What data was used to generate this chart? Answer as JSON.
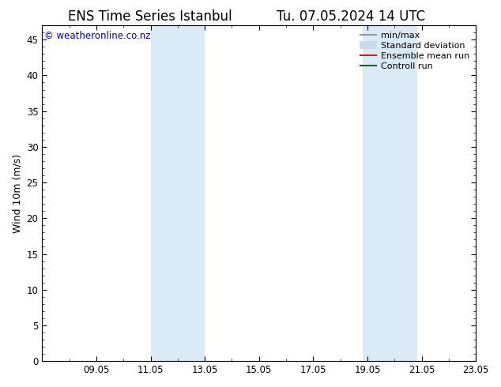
{
  "title_left": "ENS Time Series Istanbul",
  "title_right": "Tu. 07.05.2024 14 UTC",
  "ylabel": "Wind 10m (m/s)",
  "ylim": [
    0,
    47
  ],
  "yticks": [
    0,
    5,
    10,
    15,
    20,
    25,
    30,
    35,
    40,
    45
  ],
  "xlim": [
    0,
    16
  ],
  "xtick_labels": [
    "09.05",
    "11.05",
    "13.05",
    "15.05",
    "17.05",
    "19.05",
    "21.05",
    "23.05"
  ],
  "xtick_positions": [
    2.0,
    4.0,
    6.0,
    8.0,
    10.0,
    12.0,
    14.0,
    16.0
  ],
  "shaded_regions": [
    {
      "x_start": 4.0,
      "x_end": 6.0,
      "color": "#daeaf7"
    },
    {
      "x_start": 11.833,
      "x_end": 13.833,
      "color": "#daeaf7"
    }
  ],
  "watermark_text": "© weatheronline.co.nz",
  "watermark_color": "#0000cc",
  "background_color": "#ffffff",
  "plot_bg_color": "#ffffff",
  "legend_items": [
    {
      "label": "min/max",
      "color": "#999999",
      "lw": 1.5,
      "style": "solid"
    },
    {
      "label": "Standard deviation",
      "color": "#c8daea",
      "lw": 7,
      "style": "solid"
    },
    {
      "label": "Ensemble mean run",
      "color": "#ff0000",
      "lw": 1.5,
      "style": "solid"
    },
    {
      "label": "Controll run",
      "color": "#006600",
      "lw": 1.5,
      "style": "solid"
    }
  ],
  "title_fontsize": 12,
  "axis_fontsize": 9,
  "tick_fontsize": 8.5,
  "legend_fontsize": 8
}
